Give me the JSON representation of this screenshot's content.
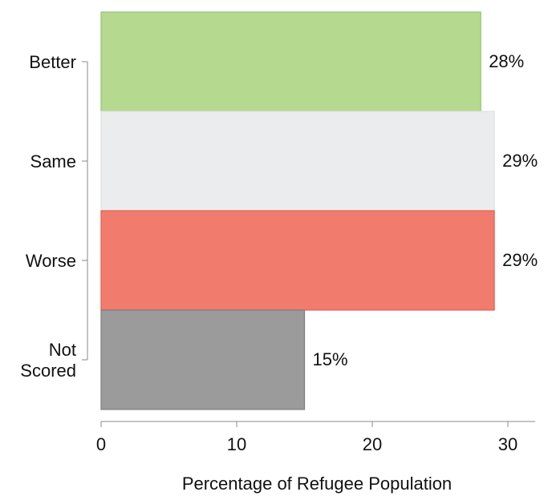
{
  "chart_data": {
    "type": "bar",
    "orientation": "horizontal",
    "categories": [
      [
        "Better"
      ],
      [
        "Same"
      ],
      [
        "Worse"
      ],
      [
        "Not",
        "Scored"
      ]
    ],
    "values": [
      28,
      29,
      29,
      15
    ],
    "value_labels": [
      "28%",
      "29%",
      "29%",
      "15%"
    ],
    "colors": [
      "#b5d98f",
      "#ebecee",
      "#f17b6c",
      "#9b9b9b"
    ],
    "edge_colors": [
      "#95c571",
      "#e0e1e4",
      "#e4604f",
      "#7d7d7d"
    ],
    "xlabel": "Percentage of Refugee Population",
    "ylabel": "",
    "title": "",
    "xlim": [
      0,
      32
    ],
    "xticks": [
      0,
      10,
      20,
      30
    ],
    "grid": false,
    "legend": "none"
  }
}
